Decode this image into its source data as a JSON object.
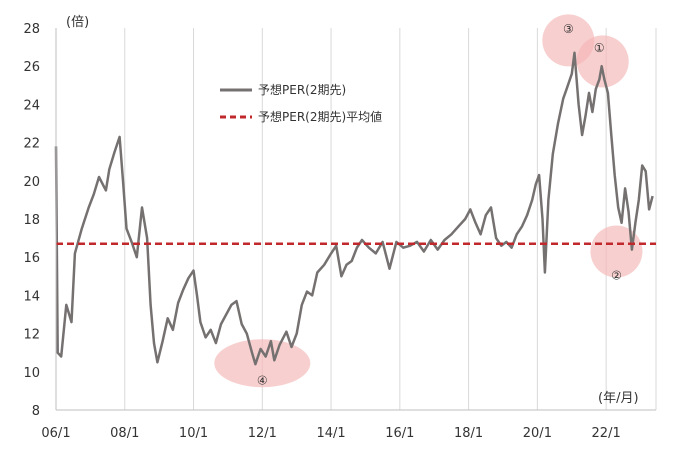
{
  "chart_data": {
    "type": "line",
    "y_unit": "(倍)",
    "x_unit": "(年/月)",
    "ylim": [
      8,
      28
    ],
    "y_ticks": [
      8,
      10,
      12,
      14,
      16,
      18,
      20,
      22,
      24,
      26,
      28
    ],
    "xlim": [
      2006.0,
      2023.45
    ],
    "x_ticks": [
      {
        "label": "06/1",
        "value": 2006.0
      },
      {
        "label": "08/1",
        "value": 2008.0
      },
      {
        "label": "10/1",
        "value": 2010.0
      },
      {
        "label": "12/1",
        "value": 2012.0
      },
      {
        "label": "14/1",
        "value": 2014.0
      },
      {
        "label": "16/1",
        "value": 2016.0
      },
      {
        "label": "18/1",
        "value": 2018.0
      },
      {
        "label": "20/1",
        "value": 2020.0
      },
      {
        "label": "22/1",
        "value": 2022.0
      }
    ],
    "grid": "vertical",
    "legend_position": "top-center",
    "series": [
      {
        "name": "予想PER(2期先)",
        "style": "solid",
        "color": "#767171",
        "points": [
          [
            2006.0,
            21.8
          ],
          [
            2006.05,
            11.0
          ],
          [
            2006.15,
            10.8
          ],
          [
            2006.3,
            13.5
          ],
          [
            2006.45,
            12.6
          ],
          [
            2006.55,
            16.2
          ],
          [
            2006.75,
            17.5
          ],
          [
            2006.95,
            18.6
          ],
          [
            2007.1,
            19.3
          ],
          [
            2007.25,
            20.2
          ],
          [
            2007.45,
            19.5
          ],
          [
            2007.55,
            20.6
          ],
          [
            2007.7,
            21.5
          ],
          [
            2007.85,
            22.3
          ],
          [
            2007.95,
            20.0
          ],
          [
            2008.05,
            17.5
          ],
          [
            2008.2,
            16.8
          ],
          [
            2008.35,
            16.0
          ],
          [
            2008.5,
            18.6
          ],
          [
            2008.65,
            17.0
          ],
          [
            2008.75,
            13.5
          ],
          [
            2008.85,
            11.5
          ],
          [
            2008.95,
            10.5
          ],
          [
            2009.1,
            11.6
          ],
          [
            2009.25,
            12.8
          ],
          [
            2009.4,
            12.2
          ],
          [
            2009.55,
            13.6
          ],
          [
            2009.7,
            14.3
          ],
          [
            2009.85,
            14.9
          ],
          [
            2010.0,
            15.3
          ],
          [
            2010.1,
            14.0
          ],
          [
            2010.2,
            12.6
          ],
          [
            2010.35,
            11.8
          ],
          [
            2010.5,
            12.2
          ],
          [
            2010.65,
            11.5
          ],
          [
            2010.8,
            12.5
          ],
          [
            2010.95,
            13.0
          ],
          [
            2011.1,
            13.5
          ],
          [
            2011.25,
            13.7
          ],
          [
            2011.4,
            12.5
          ],
          [
            2011.55,
            12.0
          ],
          [
            2011.7,
            11.0
          ],
          [
            2011.8,
            10.4
          ],
          [
            2011.95,
            11.2
          ],
          [
            2012.1,
            10.8
          ],
          [
            2012.25,
            11.6
          ],
          [
            2012.35,
            10.6
          ],
          [
            2012.5,
            11.4
          ],
          [
            2012.7,
            12.1
          ],
          [
            2012.85,
            11.3
          ],
          [
            2013.0,
            12.0
          ],
          [
            2013.15,
            13.5
          ],
          [
            2013.3,
            14.2
          ],
          [
            2013.45,
            14.0
          ],
          [
            2013.6,
            15.2
          ],
          [
            2013.8,
            15.6
          ],
          [
            2014.0,
            16.2
          ],
          [
            2014.15,
            16.6
          ],
          [
            2014.3,
            15.0
          ],
          [
            2014.45,
            15.6
          ],
          [
            2014.6,
            15.8
          ],
          [
            2014.75,
            16.5
          ],
          [
            2014.9,
            16.9
          ],
          [
            2015.1,
            16.5
          ],
          [
            2015.3,
            16.2
          ],
          [
            2015.5,
            16.8
          ],
          [
            2015.7,
            15.4
          ],
          [
            2015.9,
            16.8
          ],
          [
            2016.1,
            16.5
          ],
          [
            2016.3,
            16.6
          ],
          [
            2016.5,
            16.8
          ],
          [
            2016.7,
            16.3
          ],
          [
            2016.9,
            16.9
          ],
          [
            2017.1,
            16.4
          ],
          [
            2017.3,
            16.9
          ],
          [
            2017.5,
            17.2
          ],
          [
            2017.7,
            17.6
          ],
          [
            2017.9,
            18.0
          ],
          [
            2018.05,
            18.5
          ],
          [
            2018.2,
            17.8
          ],
          [
            2018.35,
            17.2
          ],
          [
            2018.5,
            18.2
          ],
          [
            2018.65,
            18.6
          ],
          [
            2018.8,
            17.0
          ],
          [
            2018.95,
            16.6
          ],
          [
            2019.1,
            16.8
          ],
          [
            2019.25,
            16.5
          ],
          [
            2019.4,
            17.2
          ],
          [
            2019.55,
            17.6
          ],
          [
            2019.7,
            18.2
          ],
          [
            2019.85,
            19.0
          ],
          [
            2019.95,
            19.8
          ],
          [
            2020.05,
            20.3
          ],
          [
            2020.15,
            18.0
          ],
          [
            2020.22,
            15.2
          ],
          [
            2020.32,
            19.0
          ],
          [
            2020.45,
            21.4
          ],
          [
            2020.6,
            23.0
          ],
          [
            2020.75,
            24.3
          ],
          [
            2020.85,
            24.8
          ],
          [
            2021.0,
            25.6
          ],
          [
            2021.08,
            26.7
          ],
          [
            2021.2,
            24.0
          ],
          [
            2021.3,
            22.4
          ],
          [
            2021.4,
            23.4
          ],
          [
            2021.5,
            24.6
          ],
          [
            2021.6,
            23.6
          ],
          [
            2021.7,
            24.8
          ],
          [
            2021.8,
            25.3
          ],
          [
            2021.87,
            26.0
          ],
          [
            2021.95,
            25.3
          ],
          [
            2022.05,
            24.6
          ],
          [
            2022.15,
            22.4
          ],
          [
            2022.25,
            20.3
          ],
          [
            2022.35,
            18.6
          ],
          [
            2022.45,
            17.8
          ],
          [
            2022.55,
            19.6
          ],
          [
            2022.65,
            18.4
          ],
          [
            2022.75,
            16.4
          ],
          [
            2022.85,
            17.8
          ],
          [
            2022.95,
            19.0
          ],
          [
            2023.05,
            20.8
          ],
          [
            2023.15,
            20.5
          ],
          [
            2023.25,
            18.5
          ],
          [
            2023.35,
            19.2
          ]
        ]
      },
      {
        "name": "予想PER(2期先)平均値",
        "style": "dashed",
        "color": "#c0282c",
        "points": [
          [
            2006.0,
            16.7
          ],
          [
            2023.45,
            16.7
          ]
        ]
      }
    ],
    "annotations": [
      {
        "label": "①",
        "x": 2021.9,
        "y": 26.25,
        "label_x": 2021.8,
        "label_y": 27.0
      },
      {
        "label": "②",
        "x": 2022.3,
        "y": 16.3,
        "label_x": 2022.3,
        "label_y": 15.1
      },
      {
        "label": "③",
        "x": 2020.9,
        "y": 27.35,
        "label_x": 2020.9,
        "label_y": 28.0
      },
      {
        "label": "④",
        "x": 2012.0,
        "y": 10.45,
        "label_x": 2012.0,
        "label_y": 9.6
      }
    ]
  }
}
